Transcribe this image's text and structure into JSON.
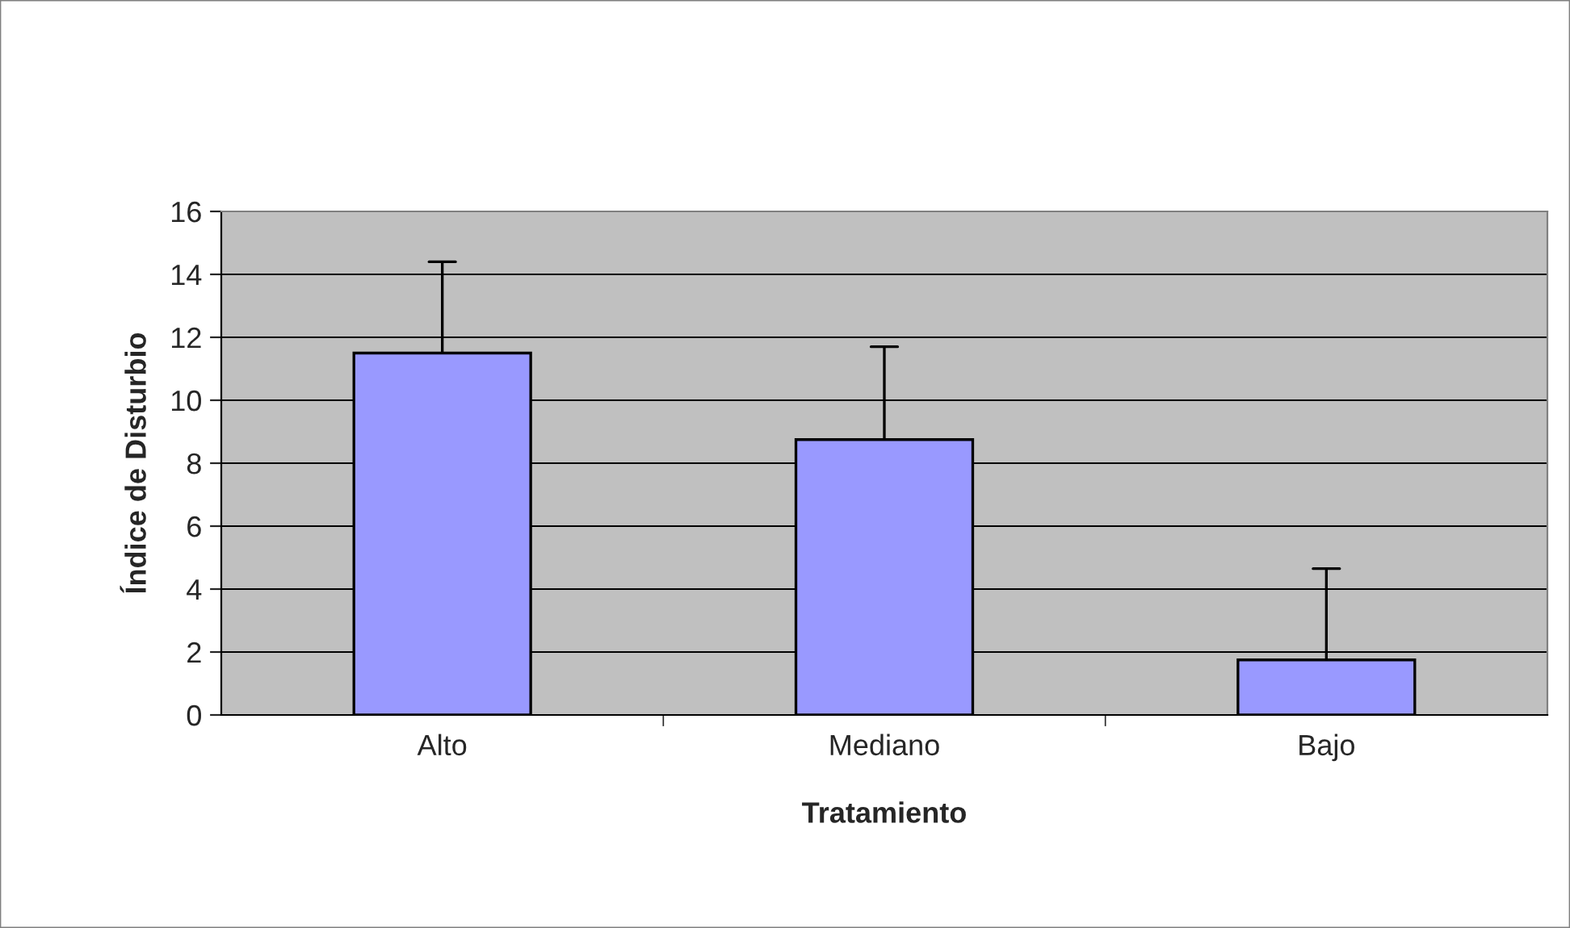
{
  "chart_data": {
    "type": "bar",
    "xlabel": "Tratamiento",
    "ylabel": "Índice de Disturbio",
    "categories": [
      "Alto",
      "Mediano",
      "Bajo"
    ],
    "values": [
      11.5,
      8.75,
      1.75
    ],
    "errors": [
      [
        11.5,
        14.4
      ],
      [
        8.75,
        11.7
      ],
      [
        1.75,
        4.65
      ]
    ],
    "color": "#9999ff",
    "ylim": [
      0,
      16
    ],
    "yticks": [
      0,
      2,
      4,
      6,
      8,
      10,
      12,
      14,
      16
    ],
    "grid": "y",
    "legend": false
  }
}
